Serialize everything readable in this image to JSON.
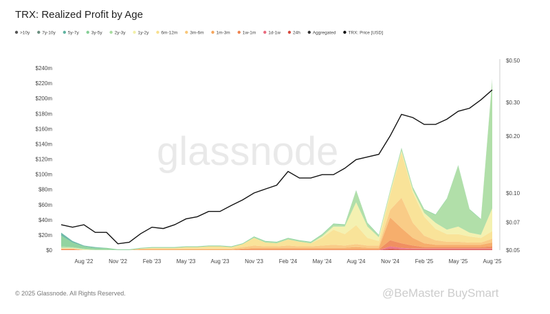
{
  "chart_data": {
    "type": "stacked-area",
    "title": "TRX: Realized Profit by Age",
    "footer": "© 2025 Glassnode. All Rights Reserved.",
    "watermark": "glassnode",
    "credit": "@BeMaster BuySmart",
    "x": [
      "2022-06",
      "2022-07",
      "2022-08",
      "2022-09",
      "2022-10",
      "2022-11",
      "2022-12",
      "2023-01",
      "2023-02",
      "2023-03",
      "2023-04",
      "2023-05",
      "2023-06",
      "2023-07",
      "2023-08",
      "2023-09",
      "2023-10",
      "2023-11",
      "2023-12",
      "2024-01",
      "2024-02",
      "2024-03",
      "2024-04",
      "2024-05",
      "2024-06",
      "2024-07",
      "2024-08",
      "2024-09",
      "2024-10",
      "2024-11",
      "2024-12",
      "2025-01",
      "2025-02",
      "2025-03",
      "2025-04",
      "2025-05",
      "2025-06",
      "2025-07",
      "2025-08"
    ],
    "xticks": [
      {
        "value": "2022-08",
        "label": "Aug '22"
      },
      {
        "value": "2022-11",
        "label": "Nov '22"
      },
      {
        "value": "2023-02",
        "label": "Feb '23"
      },
      {
        "value": "2023-05",
        "label": "May '23"
      },
      {
        "value": "2023-08",
        "label": "Aug '23"
      },
      {
        "value": "2023-11",
        "label": "Nov '23"
      },
      {
        "value": "2024-02",
        "label": "Feb '24"
      },
      {
        "value": "2024-05",
        "label": "May '24"
      },
      {
        "value": "2024-08",
        "label": "Aug '24"
      },
      {
        "value": "2024-11",
        "label": "Nov '24"
      },
      {
        "value": "2025-02",
        "label": "Feb '25"
      },
      {
        "value": "2025-05",
        "label": "May '25"
      },
      {
        "value": "2025-08",
        "label": "Aug '25"
      }
    ],
    "ylim": [
      0,
      250
    ],
    "yticks": [
      {
        "value": 0,
        "label": "$0"
      },
      {
        "value": 20,
        "label": "$20m"
      },
      {
        "value": 40,
        "label": "$40m"
      },
      {
        "value": 60,
        "label": "$60m"
      },
      {
        "value": 80,
        "label": "$80m"
      },
      {
        "value": 100,
        "label": "$100m"
      },
      {
        "value": 120,
        "label": "$120m"
      },
      {
        "value": 140,
        "label": "$140m"
      },
      {
        "value": 160,
        "label": "$160m"
      },
      {
        "value": 180,
        "label": "$180m"
      },
      {
        "value": 200,
        "label": "$200m"
      },
      {
        "value": 220,
        "label": "$220m"
      },
      {
        "value": 240,
        "label": "$240m"
      }
    ],
    "y2lim": [
      0.05,
      0.5
    ],
    "y2_scale": "log",
    "y2ticks": [
      {
        "value": 0.05,
        "label": "$0.05"
      },
      {
        "value": 0.07,
        "label": "$0.07"
      },
      {
        "value": 0.1,
        "label": "$0.10"
      },
      {
        "value": 0.2,
        "label": "$0.20"
      },
      {
        "value": 0.3,
        "label": "$0.30"
      },
      {
        "value": 0.5,
        "label": "$0.50"
      }
    ],
    "series": [
      {
        "name": ">10y",
        "color": "#555555",
        "values": [
          0,
          0,
          0,
          0,
          0,
          0,
          0,
          0,
          0,
          0,
          0,
          0,
          0,
          0,
          0,
          0,
          0,
          0,
          0,
          0,
          0,
          0,
          0,
          0,
          0,
          0,
          0,
          0,
          0,
          0,
          0,
          0,
          0,
          0,
          0,
          0,
          0,
          0,
          0
        ]
      },
      {
        "name": "7y-10y",
        "color": "#6b8e7f",
        "values": [
          0,
          0,
          0,
          0,
          0,
          0,
          0,
          0,
          0,
          0,
          0,
          0,
          0,
          0,
          0,
          0,
          0,
          0,
          0,
          0,
          0,
          0,
          0,
          0,
          0,
          0,
          0,
          0,
          0,
          0,
          0,
          0,
          0,
          0,
          0,
          0,
          0,
          0,
          0
        ]
      },
      {
        "name": "5y-7y",
        "color": "#5fb3a0",
        "values": [
          4,
          2,
          1,
          1,
          0,
          0,
          0,
          0,
          0,
          0,
          0,
          0,
          0,
          0,
          0,
          0,
          0,
          0,
          0,
          0,
          0,
          0,
          0,
          0,
          0,
          0,
          0,
          0,
          0,
          0,
          0,
          0,
          0,
          0,
          0,
          0,
          0,
          0,
          0
        ]
      },
      {
        "name": "3y-5y",
        "color": "#86cf96",
        "values": [
          14,
          6,
          3,
          2,
          2,
          1,
          1,
          1,
          1,
          1,
          1,
          1,
          1,
          1,
          1,
          1,
          1,
          1,
          1,
          1,
          1,
          1,
          1,
          1,
          1,
          1,
          1,
          1,
          1,
          1,
          1,
          1,
          1,
          1,
          1,
          1,
          1,
          1,
          1
        ]
      },
      {
        "name": "2y-3y",
        "color": "#a8dca0",
        "values": [
          2,
          1,
          1,
          1,
          1,
          0,
          0,
          0,
          0,
          0,
          0,
          0,
          0,
          0,
          0,
          0,
          0,
          1,
          1,
          1,
          1,
          1,
          1,
          2,
          3,
          2,
          15,
          4,
          2,
          2,
          3,
          3,
          4,
          10,
          40,
          80,
          30,
          20,
          170
        ]
      },
      {
        "name": "1y-2y",
        "color": "#f3f0a8",
        "values": [
          1,
          1,
          1,
          0,
          0,
          0,
          0,
          0,
          0,
          0,
          0,
          0,
          0,
          0,
          0,
          0,
          0,
          0,
          0,
          0,
          0,
          0,
          0,
          2,
          4,
          10,
          30,
          15,
          5,
          3,
          2,
          3,
          5,
          8,
          6,
          10,
          5,
          4,
          30
        ]
      },
      {
        "name": "6m-12m",
        "color": "#f8e08e",
        "values": [
          0,
          0,
          0,
          0,
          0,
          0,
          0,
          0,
          1,
          1,
          1,
          2,
          2,
          3,
          3,
          2,
          4,
          10,
          5,
          4,
          8,
          6,
          4,
          10,
          20,
          15,
          25,
          10,
          6,
          20,
          60,
          40,
          25,
          15,
          10,
          10,
          8,
          6,
          10
        ]
      },
      {
        "name": "3m-6m",
        "color": "#f8c77a",
        "values": [
          0,
          0,
          0,
          0,
          0,
          0,
          0,
          1,
          1,
          1,
          1,
          1,
          1,
          1,
          1,
          1,
          2,
          3,
          2,
          2,
          3,
          2,
          2,
          3,
          4,
          3,
          4,
          3,
          3,
          10,
          40,
          20,
          10,
          6,
          4,
          4,
          3,
          3,
          5
        ]
      },
      {
        "name": "1m-3m",
        "color": "#f5a55c",
        "values": [
          1,
          1,
          0,
          0,
          0,
          0,
          0,
          1,
          1,
          1,
          1,
          1,
          1,
          1,
          1,
          1,
          1,
          2,
          2,
          2,
          2,
          2,
          2,
          2,
          2,
          2,
          3,
          2,
          2,
          30,
          20,
          10,
          5,
          3,
          3,
          3,
          3,
          3,
          5
        ]
      },
      {
        "name": "1w-1m",
        "color": "#ee8350",
        "values": [
          1,
          1,
          0,
          0,
          0,
          0,
          0,
          0,
          0,
          0,
          0,
          0,
          0,
          0,
          0,
          0,
          1,
          1,
          1,
          1,
          1,
          1,
          1,
          1,
          1,
          1,
          1,
          1,
          1,
          8,
          6,
          4,
          2,
          2,
          2,
          2,
          2,
          2,
          3
        ]
      },
      {
        "name": "1d-1w",
        "color": "#e96a7e",
        "values": [
          0,
          0,
          0,
          0,
          0,
          0,
          0,
          0,
          0,
          0,
          0,
          0,
          0,
          0,
          0,
          0,
          0,
          0,
          0,
          0,
          0,
          0,
          0,
          0,
          0,
          0,
          0,
          0,
          0,
          3,
          2,
          1,
          1,
          1,
          1,
          1,
          1,
          1,
          1
        ]
      },
      {
        "name": "24h",
        "color": "#d64b3f",
        "values": [
          0,
          0,
          0,
          0,
          0,
          0,
          0,
          0,
          0,
          0,
          0,
          0,
          0,
          0,
          0,
          0,
          0,
          0,
          0,
          0,
          0,
          0,
          0,
          0,
          0,
          0,
          0,
          0,
          0,
          2,
          1,
          1,
          1,
          1,
          1,
          1,
          1,
          1,
          1
        ]
      },
      {
        "name": "Aggregated",
        "color": "#333333"
      },
      {
        "name": "TRX: Price [USD]",
        "color": "#111111",
        "axis": "y2",
        "values": [
          0.068,
          0.066,
          0.068,
          0.062,
          0.062,
          0.054,
          0.055,
          0.061,
          0.066,
          0.065,
          0.068,
          0.073,
          0.075,
          0.08,
          0.08,
          0.086,
          0.092,
          0.1,
          0.105,
          0.11,
          0.13,
          0.12,
          0.12,
          0.125,
          0.125,
          0.135,
          0.15,
          0.155,
          0.16,
          0.2,
          0.26,
          0.25,
          0.23,
          0.23,
          0.245,
          0.27,
          0.28,
          0.31,
          0.35
        ]
      }
    ]
  }
}
